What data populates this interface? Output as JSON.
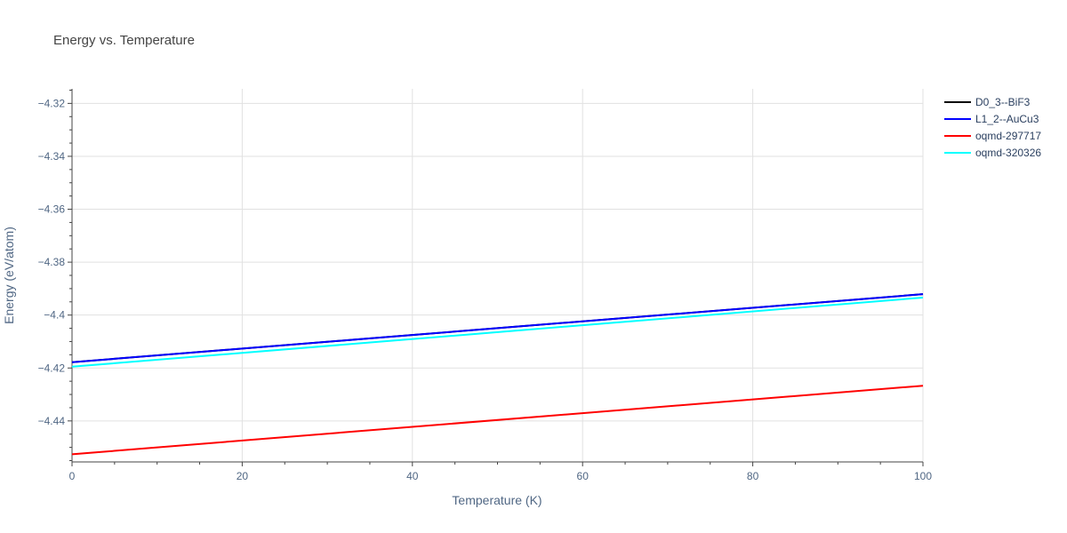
{
  "chart_data": {
    "type": "line",
    "title": "Energy vs. Temperature",
    "xlabel": "Temperature (K)",
    "ylabel": "Energy (eV/atom)",
    "xlim": [
      0,
      100
    ],
    "ylim": [
      -4.4555,
      -4.3145
    ],
    "xticks": [
      0,
      20,
      40,
      60,
      80,
      100
    ],
    "xtick_labels": [
      "0",
      "20",
      "40",
      "60",
      "80",
      "100"
    ],
    "yticks": [
      -4.32,
      -4.34,
      -4.36,
      -4.38,
      -4.4,
      -4.42,
      -4.44
    ],
    "ytick_labels": [
      "−4.32",
      "−4.34",
      "−4.36",
      "−4.38",
      "−4.4",
      "−4.42",
      "−4.44"
    ],
    "grid": true,
    "legend_position": "top-right",
    "series": [
      {
        "name": "D0_3--BiF3",
        "color": "#000000",
        "x": [
          0,
          100
        ],
        "y": [
          -4.4178,
          -4.3921
        ]
      },
      {
        "name": "L1_2--AuCu3",
        "color": "#0000ff",
        "x": [
          0,
          100
        ],
        "y": [
          -4.4178,
          -4.3921
        ]
      },
      {
        "name": "oqmd-297717",
        "color": "#ff0000",
        "x": [
          0,
          100
        ],
        "y": [
          -4.4526,
          -4.4267
        ]
      },
      {
        "name": "oqmd-320326",
        "color": "#00ffff",
        "x": [
          0,
          100
        ],
        "y": [
          -4.4195,
          -4.3934
        ]
      }
    ]
  }
}
